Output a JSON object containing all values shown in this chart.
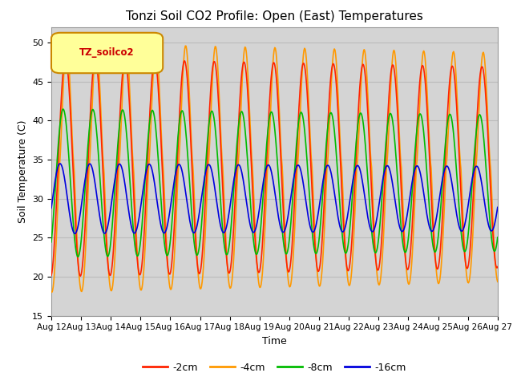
{
  "title": "Tonzi Soil CO2 Profile: Open (East) Temperatures",
  "xlabel": "Time",
  "ylabel": "Soil Temperature (C)",
  "ylim": [
    15,
    52
  ],
  "yticks": [
    15,
    20,
    25,
    30,
    35,
    40,
    45,
    50
  ],
  "legend_label": "TZ_soilco2",
  "series_labels": [
    "-2cm",
    "-4cm",
    "-8cm",
    "-16cm"
  ],
  "series_colors": [
    "#ff2200",
    "#ff9900",
    "#00bb00",
    "#0000dd"
  ],
  "n_days": 15,
  "start_day": 12,
  "plot_bg_color": "#d4d4d4"
}
